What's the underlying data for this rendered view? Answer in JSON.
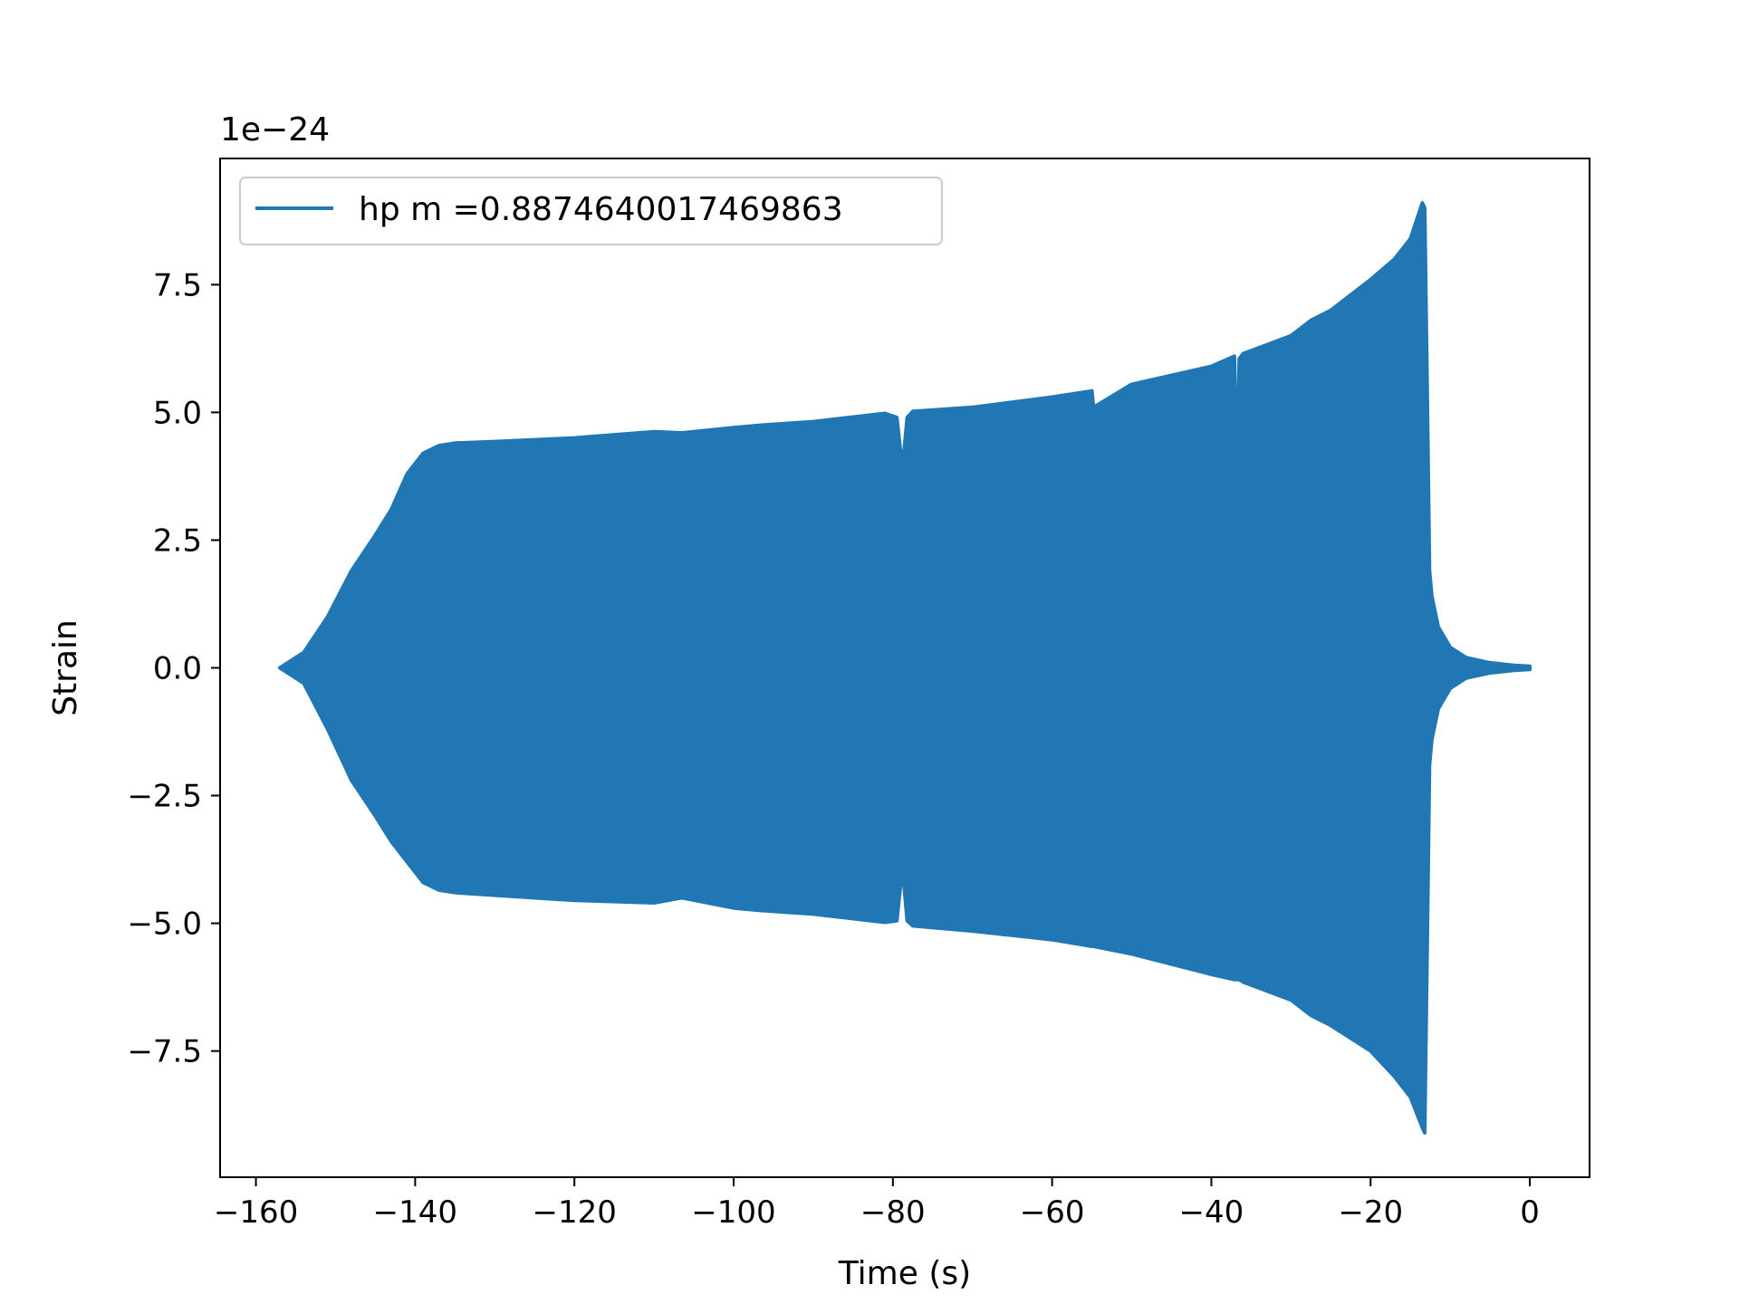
{
  "chart_data": {
    "type": "line",
    "title": "",
    "xlabel": "Time (s)",
    "ylabel": "Strain",
    "offset_label": "1e−24",
    "xlim": [
      -164.5,
      7.5
    ],
    "ylim": [
      -9.97,
      9.97
    ],
    "grid": false,
    "legend_placement": "top-left",
    "x_ticks": [
      {
        "value": -160,
        "label": "−160"
      },
      {
        "value": -140,
        "label": "−140"
      },
      {
        "value": -120,
        "label": "−120"
      },
      {
        "value": -100,
        "label": "−100"
      },
      {
        "value": -80,
        "label": "−80"
      },
      {
        "value": -60,
        "label": "−60"
      },
      {
        "value": -40,
        "label": "−40"
      },
      {
        "value": -20,
        "label": "−20"
      },
      {
        "value": 0,
        "label": "0"
      }
    ],
    "y_ticks": [
      {
        "value": 7.5,
        "label": "7.5"
      },
      {
        "value": 5.0,
        "label": "5.0"
      },
      {
        "value": 2.5,
        "label": "2.5"
      },
      {
        "value": 0.0,
        "label": "0.0"
      },
      {
        "value": -2.5,
        "label": "−2.5"
      },
      {
        "value": -5.0,
        "label": "−5.0"
      },
      {
        "value": -7.5,
        "label": "−7.5"
      }
    ],
    "series": [
      {
        "name": "hp m =0.8874640017469863",
        "color": "#2077b4",
        "x": [
          -157,
          -154,
          -151,
          -148,
          -145,
          -143,
          -141,
          -139,
          -137,
          -135,
          -130,
          -120,
          -110,
          -106.5,
          -100,
          -96.5,
          -90,
          -81,
          -79.5,
          -78.8,
          -78.2,
          -77.5,
          -70,
          -60,
          -55,
          -54.8,
          -50,
          -40,
          -37.1,
          -36.8,
          -36.5,
          -36,
          -30,
          -27.5,
          -25,
          -20,
          -17,
          -15,
          -13.5,
          -13.2,
          -12.9,
          -12.6,
          -12.3,
          -11.5,
          -10,
          -8,
          -5,
          -2,
          0
        ],
        "upper": [
          0.0,
          0.3,
          1.0,
          1.9,
          2.6,
          3.1,
          3.8,
          4.2,
          4.35,
          4.4,
          4.43,
          4.5,
          4.62,
          4.6,
          4.7,
          4.75,
          4.82,
          4.98,
          4.9,
          3.9,
          4.9,
          5.02,
          5.1,
          5.3,
          5.42,
          5.1,
          5.55,
          5.9,
          6.1,
          3.6,
          6.05,
          6.15,
          6.5,
          6.8,
          7.0,
          7.6,
          8.0,
          8.4,
          9.1,
          9.0,
          5.5,
          1.9,
          1.4,
          0.8,
          0.4,
          0.2,
          0.1,
          0.05,
          0.03
        ],
        "lower": [
          -0.0,
          -0.3,
          -1.2,
          -2.2,
          -2.9,
          -3.4,
          -3.8,
          -4.2,
          -4.35,
          -4.4,
          -4.45,
          -4.55,
          -4.6,
          -4.5,
          -4.7,
          -4.75,
          -4.82,
          -4.98,
          -4.95,
          -3.9,
          -4.95,
          -5.05,
          -5.15,
          -5.32,
          -5.45,
          -5.45,
          -5.6,
          -6.0,
          -6.1,
          -6.1,
          -6.1,
          -6.15,
          -6.5,
          -6.8,
          -7.0,
          -7.5,
          -8.0,
          -8.4,
          -9.0,
          -9.1,
          -5.5,
          -1.9,
          -1.4,
          -0.8,
          -0.4,
          -0.2,
          -0.1,
          -0.05,
          -0.03
        ]
      }
    ]
  }
}
